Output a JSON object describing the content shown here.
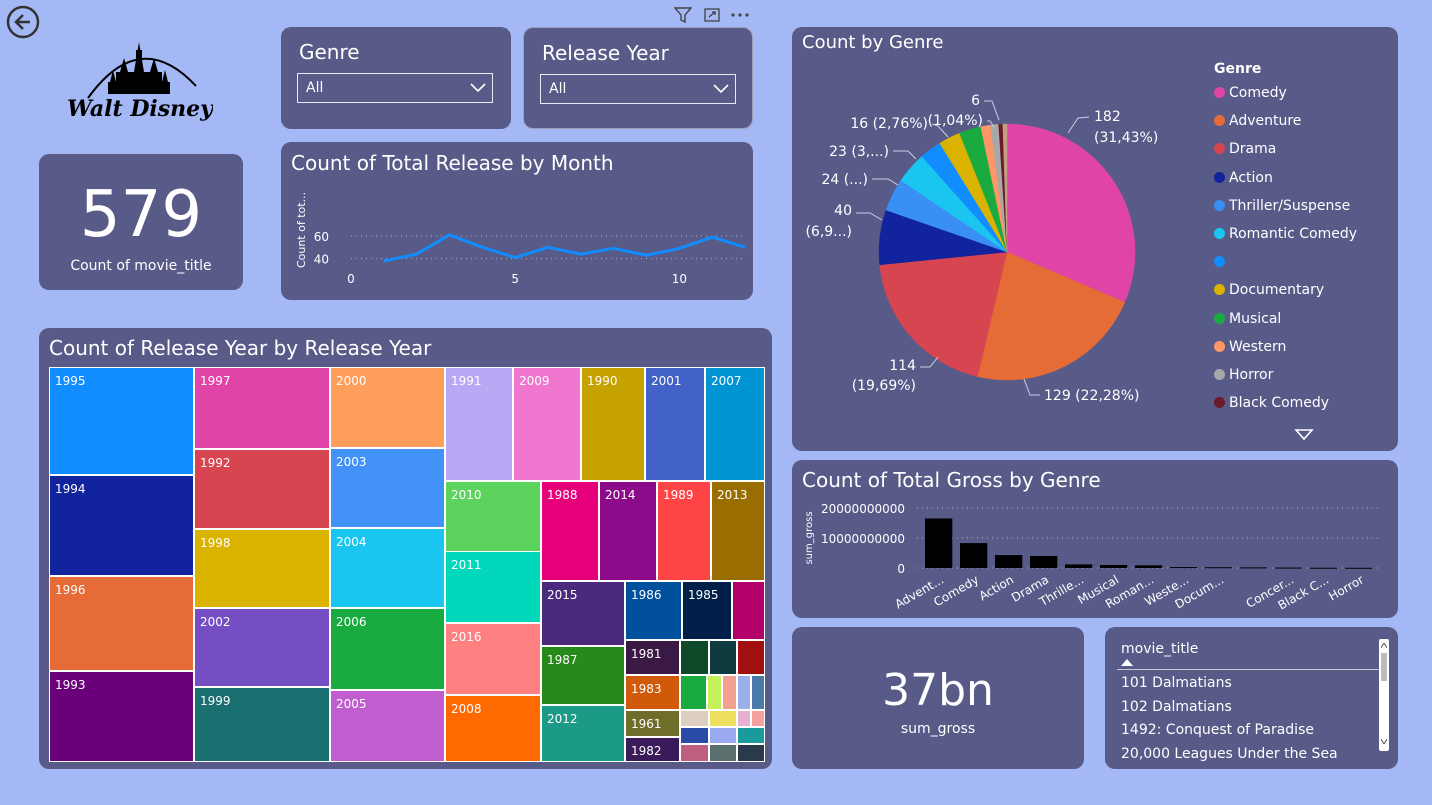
{
  "logo": {
    "text": "Walt Disney"
  },
  "kpi_count": {
    "value": "579",
    "label": "Count of movie_title"
  },
  "slicer_genre": {
    "title": "Genre",
    "selected": "All"
  },
  "slicer_year": {
    "title": "Release Year",
    "selected": "All"
  },
  "line_chart": {
    "title": "Count of Total Release by Month",
    "chart_data": {
      "type": "line",
      "title": "Count of Total Release by Month",
      "ylabel": "Count of tot...",
      "x": [
        1,
        2,
        3,
        4,
        5,
        6,
        7,
        8,
        9,
        10,
        11,
        12
      ],
      "values": [
        38,
        44,
        61,
        50,
        41,
        50,
        44,
        49,
        43,
        49,
        59,
        50
      ],
      "xticks": [
        "0",
        "5",
        "10"
      ],
      "yticks": [
        "40",
        "60"
      ],
      "xlim": [
        0,
        12
      ],
      "ylim": [
        30,
        67
      ]
    }
  },
  "pie_chart": {
    "title": "Count by Genre",
    "legend_title": "Genre",
    "chart_data": {
      "type": "pie",
      "title": "Count by Genre",
      "slices": [
        {
          "name": "Comedy",
          "value": 182,
          "color": "#e044a7"
        },
        {
          "name": "Adventure",
          "value": 129,
          "color": "#e66c37"
        },
        {
          "name": "Drama",
          "value": 114,
          "color": "#d64550"
        },
        {
          "name": "Action",
          "value": 40,
          "color": "#12239e"
        },
        {
          "name": "Thriller/Suspense",
          "value": 24,
          "color": "#3a8ff5"
        },
        {
          "name": "Romantic Comedy",
          "value": 23,
          "color": "#1ac6ef"
        },
        {
          "name": "",
          "value": 16,
          "color": "#118dff"
        },
        {
          "name": "Documentary",
          "value": 16,
          "color": "#d9b300"
        },
        {
          "name": "Musical",
          "value": 16,
          "color": "#1aab40"
        },
        {
          "name": "Western",
          "value": 7,
          "color": "#fe9666"
        },
        {
          "name": "Horror",
          "value": 6,
          "color": "#a8a8a8"
        },
        {
          "name": "Black Comedy",
          "value": 3,
          "color": "#6b1a2a"
        },
        {
          "name": "",
          "value": 3,
          "color": "#c0a080"
        }
      ],
      "data_labels": [
        "182",
        "(31,43%)",
        "129 (22,28%)",
        "114",
        "(19,69%)",
        "40",
        "(6,9...)",
        "24 (...)",
        "23 (3,...)",
        "16 (2,76%)",
        "(1,04%)",
        "6"
      ]
    }
  },
  "treemap": {
    "title": "Count of Release Year by Release Year",
    "chart_data": {
      "type": "treemap",
      "title": "Count of Release Year by Release Year",
      "labels": [
        "1995",
        "1997",
        "2000",
        "1991",
        "2009",
        "1990",
        "2001",
        "2007",
        "1994",
        "1992",
        "2003",
        "2010",
        "1988",
        "2014",
        "1989",
        "2013",
        "1998",
        "2004",
        "2011",
        "1996",
        "2002",
        "2006",
        "2015",
        "1986",
        "1985",
        "2016",
        "1987",
        "1981",
        "1983",
        "1993",
        "1999",
        "2005",
        "2008",
        "2012",
        "1961",
        "1982"
      ]
    }
  },
  "bar_chart": {
    "title": "Count of Total Gross by Genre",
    "chart_data": {
      "type": "bar",
      "title": "Count of Total Gross by Genre",
      "ylabel": "sum_gross",
      "categories": [
        "Advent...",
        "Comedy",
        "Action",
        "Drama",
        "Thrille...",
        "Musical",
        "Roman...",
        "Weste...",
        "Docum...",
        "",
        "Concer...",
        "Black C...",
        "Horror"
      ],
      "values": [
        16500000000,
        8300000000,
        4300000000,
        4000000000,
        1200000000,
        1000000000,
        900000000,
        300000000,
        250000000,
        200000000,
        150000000,
        100000000,
        80000000
      ],
      "yticks": [
        "0",
        "10000000000",
        "20000000000"
      ],
      "ylim": [
        0,
        20000000000
      ]
    }
  },
  "kpi_gross": {
    "value": "37bn",
    "label": "sum_gross"
  },
  "table": {
    "header": "movie_title",
    "rows": [
      "101 Dalmatians",
      "102 Dalmatians",
      "1492: Conquest of Paradise",
      "20,000 Leagues Under the Sea"
    ]
  }
}
